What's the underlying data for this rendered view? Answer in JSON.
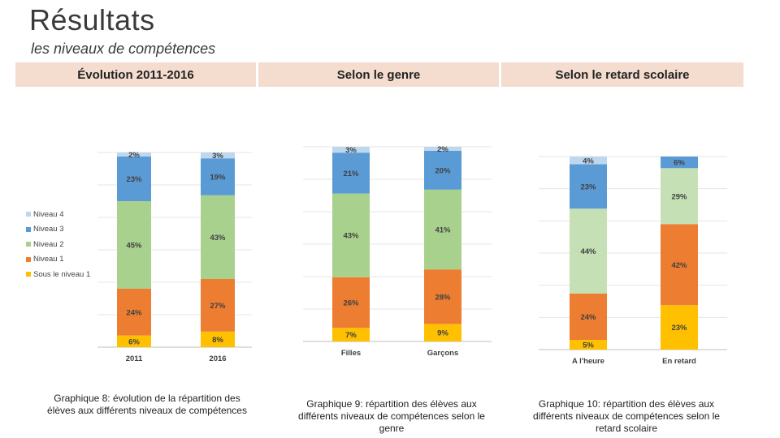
{
  "header": {
    "title": "Résultats",
    "subtitle": "les niveaux de compétences"
  },
  "columns": [
    {
      "heading": "Évolution 2011-2016",
      "caption": "Graphique 8: évolution de la répartition des élèves aux différents niveaux de compétences"
    },
    {
      "heading": "Selon le genre",
      "caption": "Graphique 9: répartition des élèves aux différents niveaux de compétences selon le genre"
    },
    {
      "heading": "Selon le retard scolaire",
      "caption": "Graphique 10: répartition des élèves aux différents niveaux de compétences selon le retard scolaire"
    }
  ],
  "legend": [
    {
      "label": "Niveau 4",
      "color": "#bdd7ee"
    },
    {
      "label": "Niveau 3",
      "color": "#5b9bd5"
    },
    {
      "label": "Niveau 2",
      "color": "#a9d18e"
    },
    {
      "label": "Niveau 1",
      "color": "#ed7d31"
    },
    {
      "label": "Sous le niveau 1",
      "color": "#ffc000"
    }
  ],
  "chart_data": [
    {
      "type": "bar",
      "stacked": true,
      "title": "Graphique 8",
      "categories": [
        "2011",
        "2016"
      ],
      "series": [
        {
          "name": "Sous le niveau 1",
          "values": [
            6,
            8
          ],
          "color": "#ffc000"
        },
        {
          "name": "Niveau 1",
          "values": [
            24,
            27
          ],
          "color": "#ed7d31"
        },
        {
          "name": "Niveau 2",
          "values": [
            45,
            43
          ],
          "color": "#a9d18e"
        },
        {
          "name": "Niveau 3",
          "values": [
            23,
            19
          ],
          "color": "#5b9bd5"
        },
        {
          "name": "Niveau 4",
          "values": [
            2,
            3
          ],
          "color": "#bdd7ee"
        }
      ],
      "ylim": [
        0,
        100
      ]
    },
    {
      "type": "bar",
      "stacked": true,
      "title": "Graphique 9",
      "categories": [
        "Filles",
        "Garçons"
      ],
      "series": [
        {
          "name": "Sous le niveau 1",
          "values": [
            7,
            9
          ],
          "color": "#ffc000"
        },
        {
          "name": "Niveau 1",
          "values": [
            26,
            28
          ],
          "color": "#ed7d31"
        },
        {
          "name": "Niveau 2",
          "values": [
            43,
            41
          ],
          "color": "#a9d18e"
        },
        {
          "name": "Niveau 3",
          "values": [
            21,
            20
          ],
          "color": "#5b9bd5"
        },
        {
          "name": "Niveau 4",
          "values": [
            3,
            2
          ],
          "color": "#bdd7ee"
        }
      ],
      "ylim": [
        0,
        100
      ]
    },
    {
      "type": "bar",
      "stacked": true,
      "title": "Graphique 10",
      "categories": [
        "A l'heure",
        "En retard"
      ],
      "series": [
        {
          "name": "Sous le niveau 1",
          "values": [
            5,
            23
          ],
          "color": "#ffc000"
        },
        {
          "name": "Niveau 1",
          "values": [
            24,
            42
          ],
          "color": "#ed7d31"
        },
        {
          "name": "Niveau 2",
          "values": [
            44,
            29
          ],
          "color": "#c5e0b4"
        },
        {
          "name": "Niveau 3",
          "values": [
            23,
            6
          ],
          "color": "#5b9bd5"
        },
        {
          "name": "Niveau 4",
          "values": [
            4,
            0
          ],
          "color": "#bdd7ee"
        }
      ],
      "ylim": [
        0,
        100
      ]
    }
  ]
}
